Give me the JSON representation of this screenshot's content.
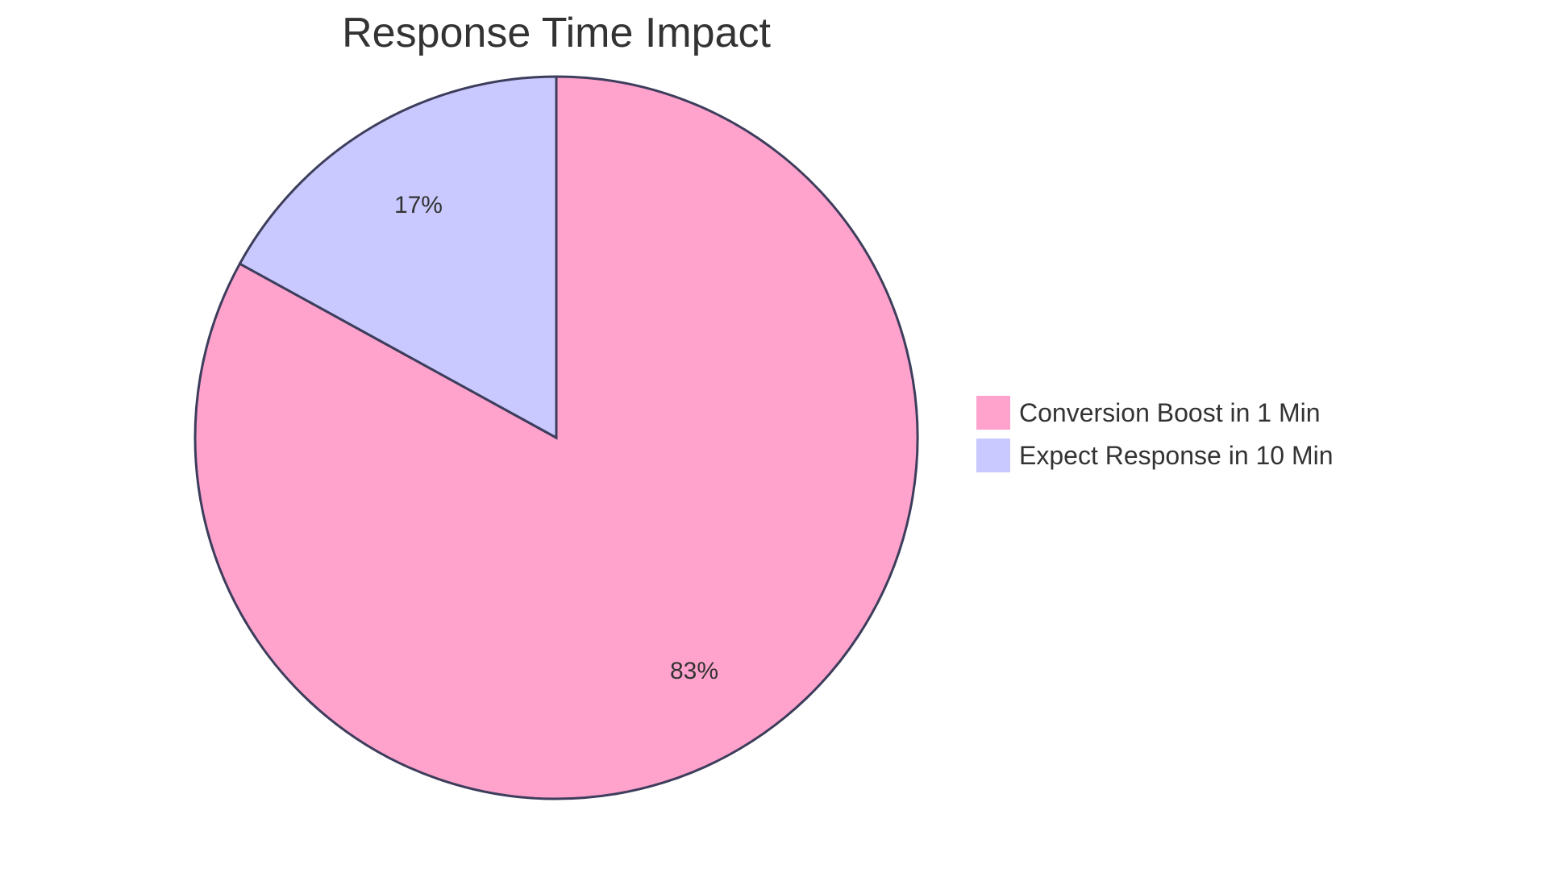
{
  "chart_data": {
    "type": "pie",
    "title": "Response Time Impact",
    "slices": [
      {
        "label": "Conversion Boost in 1 Min",
        "value": 83,
        "display": "83%",
        "color": "#ffa3cd"
      },
      {
        "label": "Expect Response in 10 Min",
        "value": 17,
        "display": "17%",
        "color": "#c9c9ff"
      }
    ],
    "legend_position": "right",
    "stroke_color": "#3d3d5c"
  }
}
